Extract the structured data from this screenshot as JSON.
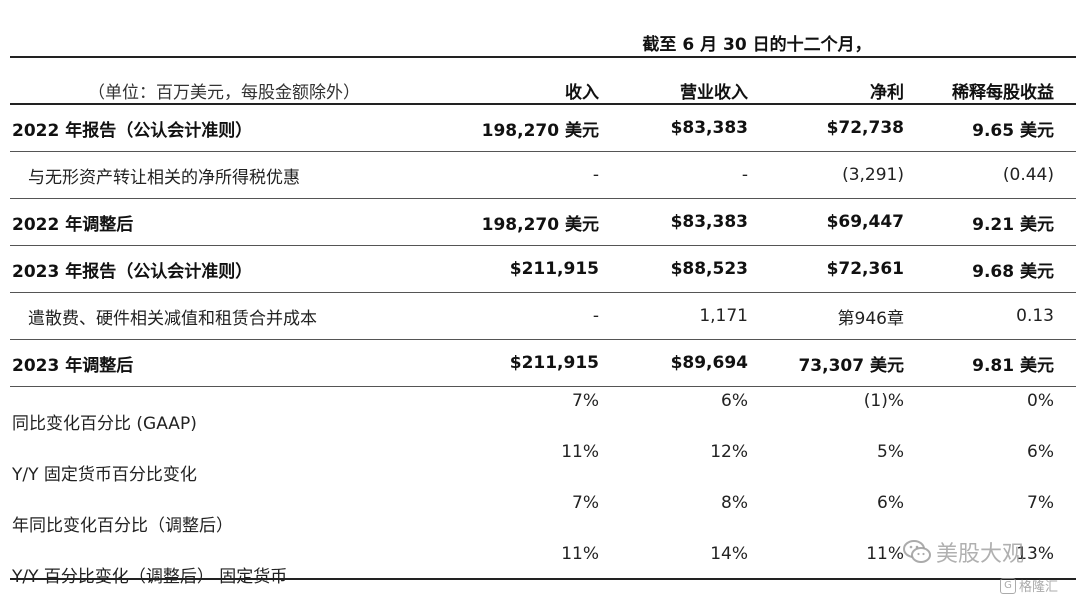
{
  "header": {
    "period": "截至 6 月 30 日的十二个月，",
    "unit_note": "（单位：百万美元，每股金额除外）",
    "columns": [
      "收入",
      "营业收入",
      "净利",
      "稀释每股收益"
    ]
  },
  "rows": [
    {
      "label": "2022 年报告（公认会计准则）",
      "values": [
        "198,270 美元",
        "$83,383",
        "$72,738",
        "9.65 美元"
      ]
    },
    {
      "label": "与无形资产转让相关的净所得税优惠",
      "values": [
        "-",
        "-",
        "(3,291)",
        "(0.44)"
      ]
    },
    {
      "label": "2022 年调整后",
      "values": [
        "198,270 美元",
        "$83,383",
        "$69,447",
        "9.21 美元"
      ]
    },
    {
      "label": "2023 年报告（公认会计准则）",
      "values": [
        "$211,915",
        "$88,523",
        "$72,361",
        "9.68 美元"
      ]
    },
    {
      "label": "遣散费、硬件相关减值和租赁合并成本",
      "values": [
        "-",
        "1,171",
        "第946章",
        "0.13"
      ]
    },
    {
      "label": "2023 年调整后",
      "values": [
        "$211,915",
        "$89,694",
        "73,307 美元",
        "9.81 美元"
      ]
    },
    {
      "label": "同比变化百分比 (GAAP)",
      "values": [
        "7%",
        "6%",
        "(1)%",
        "0%"
      ]
    },
    {
      "label": "Y/Y 固定货币百分比变化",
      "values": [
        "11%",
        "12%",
        "5%",
        "6%"
      ]
    },
    {
      "label": "年同比变化百分比（调整后）",
      "values": [
        "7%",
        "8%",
        "6%",
        "7%"
      ]
    },
    {
      "label": "Y/Y 百分比变化（调整后） 固定货币",
      "values": [
        "11%",
        "14%",
        "11%",
        "13%"
      ]
    }
  ],
  "watermark": {
    "text": "美股大观",
    "icon": "wechat-icon",
    "source": "格隆汇",
    "source_icon": "gelonghui-logo-icon"
  }
}
